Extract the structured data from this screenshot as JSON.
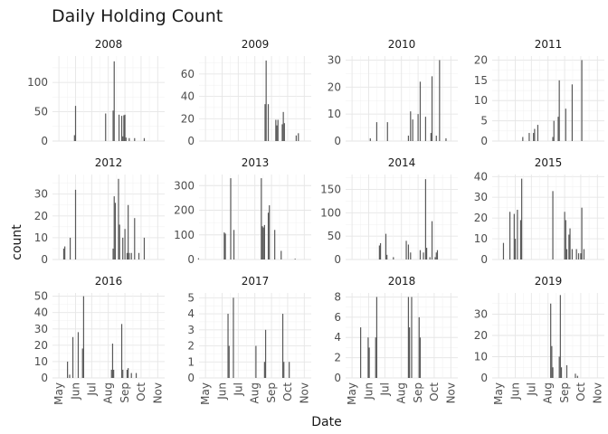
{
  "chart_data": {
    "type": "bar",
    "title": "Daily Holding Count",
    "xlabel": "Date",
    "ylabel": "count",
    "x_tick_labels": [
      "May",
      "Jun",
      "Jul",
      "Aug",
      "Sep",
      "Oct",
      "Nov"
    ],
    "x_tick_days": [
      121,
      152,
      182,
      213,
      244,
      274,
      305
    ],
    "xlim_day_of_year": [
      109,
      318
    ],
    "grid": true,
    "bar_color": "#595959",
    "panels": [
      {
        "label": "2008",
        "ylim": [
          0,
          145
        ],
        "yticks": [
          0,
          50,
          100
        ],
        "bars": [
          [
            150,
            10
          ],
          [
            152,
            60
          ],
          [
            208,
            47
          ],
          [
            222,
            52
          ],
          [
            224,
            136
          ],
          [
            233,
            45
          ],
          [
            238,
            43
          ],
          [
            240,
            8
          ],
          [
            242,
            44
          ],
          [
            244,
            45
          ],
          [
            246,
            6
          ],
          [
            252,
            5
          ],
          [
            262,
            5
          ],
          [
            280,
            5
          ]
        ]
      },
      {
        "label": "2009",
        "ylim": [
          0,
          76
        ],
        "yticks": [
          0,
          20,
          40,
          60
        ],
        "bars": [
          [
            232,
            33
          ],
          [
            234,
            72
          ],
          [
            238,
            33
          ],
          [
            252,
            19
          ],
          [
            254,
            14
          ],
          [
            256,
            19
          ],
          [
            264,
            15
          ],
          [
            266,
            26
          ],
          [
            268,
            16
          ],
          [
            290,
            5
          ],
          [
            294,
            7
          ]
        ]
      },
      {
        "label": "2010",
        "ylim": [
          0,
          31.5
        ],
        "yticks": [
          0,
          10,
          20,
          30
        ],
        "bars": [
          [
            155,
            1
          ],
          [
            167,
            7
          ],
          [
            187,
            7
          ],
          [
            226,
            2
          ],
          [
            230,
            11
          ],
          [
            234,
            8
          ],
          [
            244,
            10
          ],
          [
            248,
            22
          ],
          [
            258,
            9
          ],
          [
            268,
            3
          ],
          [
            270,
            24
          ],
          [
            278,
            2
          ],
          [
            284,
            30
          ],
          [
            296,
            1
          ]
        ]
      },
      {
        "label": "2011",
        "ylim": [
          0,
          21
        ],
        "yticks": [
          0,
          5,
          10,
          15,
          20
        ],
        "bars": [
          [
            166,
            1
          ],
          [
            178,
            2
          ],
          [
            186,
            2
          ],
          [
            188,
            3
          ],
          [
            194,
            4
          ],
          [
            222,
            1
          ],
          [
            224,
            5
          ],
          [
            232,
            6
          ],
          [
            234,
            15
          ],
          [
            246,
            8
          ],
          [
            258,
            14
          ],
          [
            276,
            20
          ]
        ]
      },
      {
        "label": "2012",
        "ylim": [
          0,
          39
        ],
        "yticks": [
          0,
          10,
          20,
          30
        ],
        "bars": [
          [
            130,
            5
          ],
          [
            132,
            6
          ],
          [
            142,
            10
          ],
          [
            152,
            32
          ],
          [
            222,
            5
          ],
          [
            224,
            29
          ],
          [
            226,
            26
          ],
          [
            232,
            37
          ],
          [
            234,
            16
          ],
          [
            240,
            10
          ],
          [
            244,
            14
          ],
          [
            248,
            3
          ],
          [
            250,
            25
          ],
          [
            252,
            3
          ],
          [
            256,
            3
          ],
          [
            262,
            19
          ],
          [
            270,
            3
          ],
          [
            280,
            10
          ]
        ]
      },
      {
        "label": "2013",
        "ylim": [
          0,
          345
        ],
        "yticks": [
          0,
          100,
          200,
          300
        ],
        "bars": [
          [
            108,
            5
          ],
          [
            156,
            110
          ],
          [
            158,
            105
          ],
          [
            168,
            330
          ],
          [
            174,
            120
          ],
          [
            225,
            330
          ],
          [
            227,
            135
          ],
          [
            229,
            130
          ],
          [
            231,
            140
          ],
          [
            238,
            190
          ],
          [
            240,
            220
          ],
          [
            250,
            120
          ],
          [
            262,
            35
          ],
          [
            288,
            3
          ]
        ]
      },
      {
        "label": "2014",
        "ylim": [
          0,
          182
        ],
        "yticks": [
          0,
          50,
          100,
          150
        ],
        "bars": [
          [
            172,
            30
          ],
          [
            174,
            35
          ],
          [
            184,
            55
          ],
          [
            186,
            10
          ],
          [
            198,
            5
          ],
          [
            222,
            40
          ],
          [
            226,
            32
          ],
          [
            230,
            15
          ],
          [
            248,
            20
          ],
          [
            254,
            15
          ],
          [
            258,
            172
          ],
          [
            260,
            25
          ],
          [
            266,
            5
          ],
          [
            270,
            82
          ],
          [
            276,
            5
          ],
          [
            278,
            15
          ],
          [
            280,
            20
          ]
        ]
      },
      {
        "label": "2015",
        "ylim": [
          0,
          41
        ],
        "yticks": [
          0,
          10,
          20,
          30,
          40
        ],
        "bars": [
          [
            130,
            8
          ],
          [
            142,
            23
          ],
          [
            150,
            22
          ],
          [
            152,
            10
          ],
          [
            156,
            24
          ],
          [
            162,
            19
          ],
          [
            164,
            39
          ],
          [
            222,
            33
          ],
          [
            244,
            23
          ],
          [
            246,
            19
          ],
          [
            248,
            5
          ],
          [
            252,
            12
          ],
          [
            254,
            15
          ],
          [
            258,
            5
          ],
          [
            266,
            5
          ],
          [
            270,
            3
          ],
          [
            274,
            3
          ],
          [
            276,
            25
          ],
          [
            280,
            5
          ]
        ]
      },
      {
        "label": "2016",
        "ylim": [
          0,
          52
        ],
        "yticks": [
          0,
          10,
          20,
          30,
          40,
          50
        ],
        "bars": [
          [
            137,
            10
          ],
          [
            141,
            2
          ],
          [
            147,
            25
          ],
          [
            157,
            28
          ],
          [
            165,
            18
          ],
          [
            167,
            50
          ],
          [
            219,
            5
          ],
          [
            221,
            21
          ],
          [
            223,
            5
          ],
          [
            238,
            33
          ],
          [
            240,
            5
          ],
          [
            248,
            5
          ],
          [
            250,
            6
          ],
          [
            256,
            3
          ],
          [
            265,
            3
          ]
        ]
      },
      {
        "label": "2017",
        "ylim": [
          0,
          5.3
        ],
        "yticks": [
          0,
          1,
          2,
          3,
          4,
          5
        ],
        "bars": [
          [
            163,
            4
          ],
          [
            165,
            2
          ],
          [
            173,
            5
          ],
          [
            215,
            2
          ],
          [
            231,
            1
          ],
          [
            233,
            3
          ],
          [
            265,
            4
          ],
          [
            267,
            1
          ],
          [
            277,
            1
          ]
        ]
      },
      {
        "label": "2018",
        "ylim": [
          0,
          8.4
        ],
        "yticks": [
          0,
          2,
          4,
          6,
          8
        ],
        "bars": [
          [
            137,
            5
          ],
          [
            151,
            4
          ],
          [
            153,
            3
          ],
          [
            165,
            4
          ],
          [
            167,
            8
          ],
          [
            226,
            8
          ],
          [
            228,
            5
          ],
          [
            232,
            8
          ],
          [
            246,
            6
          ],
          [
            248,
            4
          ]
        ]
      },
      {
        "label": "2019",
        "ylim": [
          0,
          40
        ],
        "yticks": [
          0,
          10,
          20,
          30
        ],
        "bars": [
          [
            218,
            35
          ],
          [
            220,
            15
          ],
          [
            222,
            5
          ],
          [
            234,
            10
          ],
          [
            236,
            39
          ],
          [
            238,
            5
          ],
          [
            248,
            6
          ],
          [
            264,
            2
          ],
          [
            268,
            1
          ]
        ]
      }
    ]
  }
}
